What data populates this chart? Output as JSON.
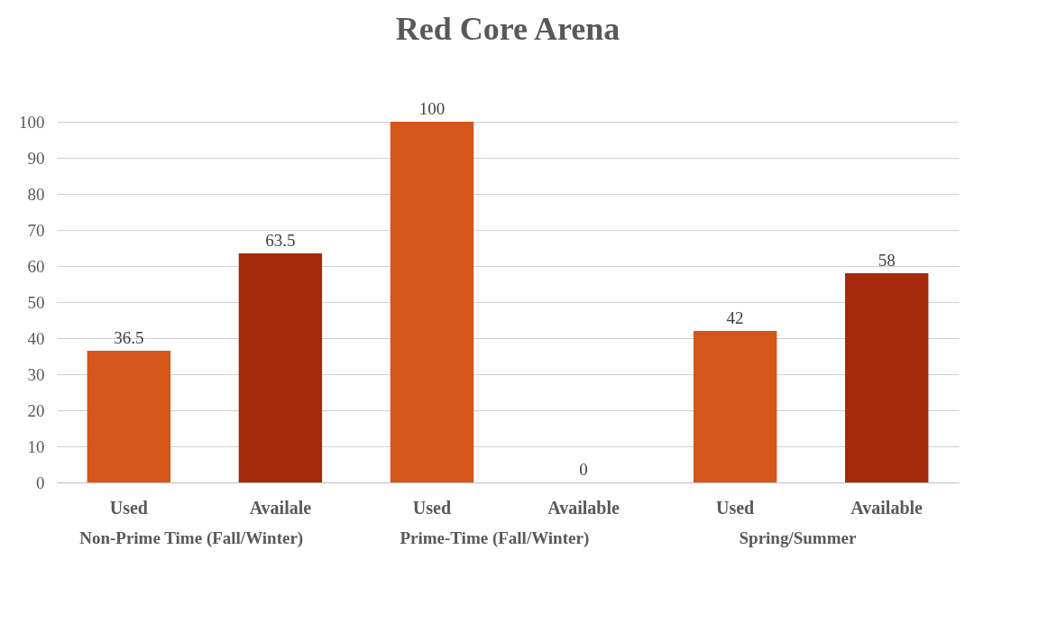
{
  "chart_data": {
    "type": "bar",
    "title": "Red Core Arena",
    "categories": [
      "Used",
      "Availale",
      "Used",
      "Available",
      "Used",
      "Available"
    ],
    "values": [
      36.5,
      63.5,
      100,
      0,
      42,
      58
    ],
    "colors": [
      "#d4561a",
      "#a52a0d",
      "#d4561a",
      "#a52a0d",
      "#d4561a",
      "#a52a0d"
    ],
    "ylim": [
      0,
      100
    ],
    "yticks": [
      0,
      10,
      20,
      30,
      40,
      50,
      60,
      70,
      80,
      90,
      100
    ],
    "grid": "y",
    "data_labels": true,
    "annotations": [
      "Non-Prime Time (Fall/Winter)",
      "Prime-Time (Fall/Winter)",
      "Spring/Summer"
    ]
  }
}
